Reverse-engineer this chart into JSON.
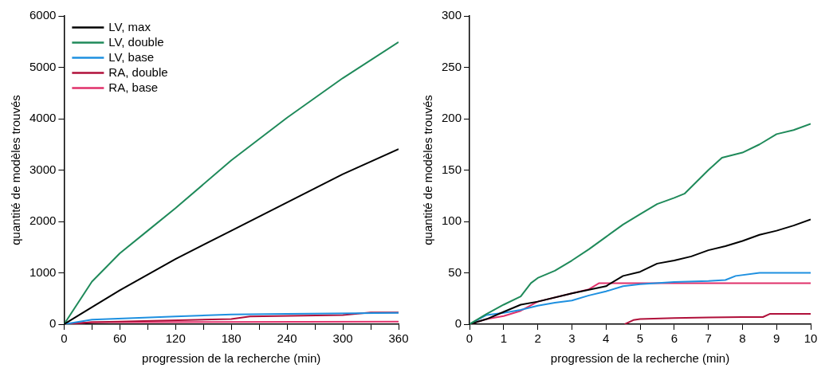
{
  "chart_data": [
    {
      "type": "line",
      "xlabel": "progression de la recherche (min)",
      "ylabel": "quantité de modèles trouvés",
      "xlim": [
        0,
        360
      ],
      "ylim": [
        0,
        6000
      ],
      "xticks": [
        0,
        {
          "value": 30,
          "label": null
        },
        60,
        {
          "value": 90,
          "label": null
        },
        120,
        {
          "value": 150,
          "label": null
        },
        180,
        {
          "value": 210,
          "label": null
        },
        240,
        {
          "value": 270,
          "label": null
        },
        300,
        {
          "value": 330,
          "label": null
        },
        360
      ],
      "yticks": [
        0,
        1000,
        2000,
        3000,
        4000,
        5000,
        6000
      ],
      "legend": "top left",
      "grid": false,
      "marker": "none",
      "line_style": "solid",
      "series": [
        {
          "name": "LV, max",
          "color": "#000000",
          "x": [
            0,
            30,
            60,
            120,
            180,
            240,
            300,
            360
          ],
          "values": [
            0,
            330,
            660,
            1270,
            1820,
            2370,
            2920,
            3410
          ]
        },
        {
          "name": "LV, double",
          "color": "#1f8a5a",
          "x": [
            0,
            30,
            60,
            90,
            120,
            180,
            240,
            300,
            360
          ],
          "values": [
            0,
            830,
            1380,
            1820,
            2260,
            3190,
            4020,
            4790,
            5490
          ]
        },
        {
          "name": "LV, base",
          "color": "#1e90e0",
          "x": [
            0,
            30,
            120,
            180,
            240,
            360
          ],
          "values": [
            0,
            90,
            150,
            190,
            200,
            220
          ]
        },
        {
          "name": "RA, double",
          "color": "#b0103a",
          "x": [
            0,
            30,
            180,
            200,
            300,
            330,
            360
          ],
          "values": [
            0,
            40,
            100,
            150,
            180,
            230,
            230
          ]
        },
        {
          "name": "RA, base",
          "color": "#e0306a",
          "x": [
            0,
            30,
            360
          ],
          "values": [
            0,
            40,
            50
          ]
        }
      ]
    },
    {
      "type": "line",
      "xlabel": "progression de la recherche (min)",
      "ylabel": "quantité de modèles trouvés",
      "xlim": [
        0,
        10
      ],
      "ylim": [
        0,
        300
      ],
      "xticks": [
        0,
        1,
        2,
        3,
        4,
        5,
        6,
        7,
        8,
        9,
        10
      ],
      "yticks": [
        0,
        50,
        100,
        150,
        200,
        250,
        300
      ],
      "legend": false,
      "grid": false,
      "marker": "none",
      "line_style": "solid",
      "series": [
        {
          "color": "#1f8a5a",
          "x": [
            0,
            0.5,
            1,
            1.5,
            1.8,
            2,
            2.5,
            3,
            3.5,
            4,
            4.5,
            5,
            5.5,
            6,
            6.3,
            7,
            7.4,
            8,
            8.5,
            9,
            9.5,
            10
          ],
          "values": [
            0,
            10,
            19,
            27,
            40,
            45,
            52,
            62,
            73,
            85,
            97,
            107,
            117,
            123,
            127,
            150,
            162,
            167,
            175,
            185,
            189,
            195
          ]
        },
        {
          "color": "#000000",
          "x": [
            0,
            0.5,
            1,
            1.5,
            2,
            3,
            4,
            4.5,
            5,
            5.5,
            6,
            6.5,
            7,
            7.5,
            8,
            8.5,
            9,
            9.5,
            10
          ],
          "values": [
            0,
            5,
            12,
            19,
            22,
            30,
            37,
            47,
            51,
            59,
            62,
            66,
            72,
            76,
            81,
            87,
            91,
            96,
            102
          ]
        },
        {
          "color": "#1e90e0",
          "x": [
            0,
            0.5,
            1,
            1.5,
            2,
            2.5,
            3,
            3.5,
            4,
            4.5,
            5,
            6,
            7,
            7.5,
            7.8,
            8.5,
            10
          ],
          "values": [
            0,
            9,
            11,
            14,
            18,
            21,
            23,
            28,
            32,
            37,
            39,
            41,
            42,
            43,
            47,
            50,
            50
          ]
        },
        {
          "color": "#e0306a",
          "x": [
            0,
            0.5,
            1,
            1.5,
            2,
            3,
            3.5,
            3.8,
            4.5,
            10
          ],
          "values": [
            0,
            5,
            8,
            13,
            22,
            30,
            34,
            40,
            40,
            40
          ]
        },
        {
          "color": "#b0103a",
          "x": [
            4.55,
            4.8,
            5,
            6,
            7,
            8,
            8.6,
            8.8,
            10
          ],
          "values": [
            0,
            4,
            5,
            6,
            6.5,
            7,
            7,
            10,
            10
          ]
        }
      ]
    }
  ]
}
